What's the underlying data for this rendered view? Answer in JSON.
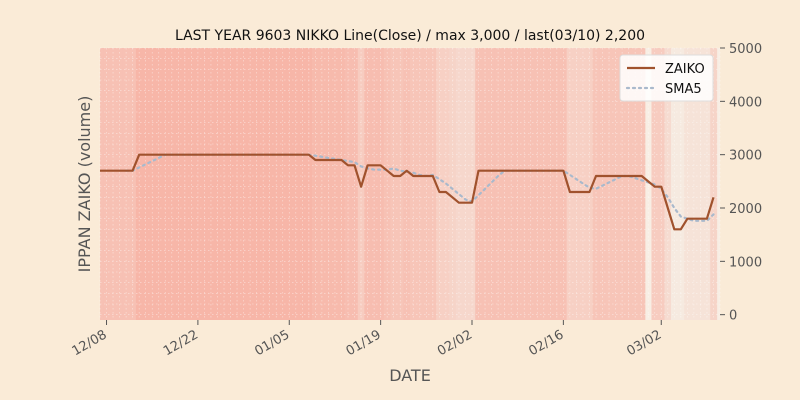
{
  "chart_data": {
    "type": "line",
    "title": "LAST YEAR 9603 NIKKO Line(Close) / max 3,000 / last(03/10) 2,200",
    "xlabel": "DATE",
    "ylabel": "IPPAN ZAIKO (volume)",
    "ylim": [
      -100,
      5000
    ],
    "yticks": [
      0,
      1000,
      2000,
      3000,
      4000,
      5000
    ],
    "ytick_labels": [
      "0",
      "1000",
      "2000",
      "3000",
      "4000",
      "5000"
    ],
    "xticks": [
      "12/08",
      "12/22",
      "01/05",
      "01/19",
      "02/02",
      "02/16",
      "03/02"
    ],
    "x_range": [
      "12/07",
      "03/11"
    ],
    "y_axis_side": "right",
    "grid": true,
    "legend_position": "top-right",
    "colors": {
      "background": "#faebd7",
      "zaiko": "#a0522d",
      "sma5": "#a9b9cc",
      "heat_light": "#f6e2d7",
      "heat_dark": "#f7b6a8"
    },
    "series": [
      {
        "name": "ZAIKO",
        "style": "solid",
        "x": [
          "12/07",
          "12/08",
          "12/09",
          "12/10",
          "12/11",
          "12/12",
          "12/13",
          "12/14",
          "12/15",
          "12/16",
          "12/17",
          "12/18",
          "12/19",
          "12/20",
          "12/21",
          "12/22",
          "12/23",
          "12/24",
          "12/25",
          "12/26",
          "12/27",
          "12/28",
          "12/29",
          "12/30",
          "12/31",
          "01/01",
          "01/02",
          "01/03",
          "01/04",
          "01/05",
          "01/06",
          "01/07",
          "01/08",
          "01/09",
          "01/10",
          "01/11",
          "01/12",
          "01/13",
          "01/14",
          "01/15",
          "01/16",
          "01/17",
          "01/18",
          "01/19",
          "01/20",
          "01/21",
          "01/22",
          "01/23",
          "01/24",
          "01/25",
          "01/26",
          "01/27",
          "01/28",
          "01/29",
          "01/30",
          "01/31",
          "02/01",
          "02/02",
          "02/03",
          "02/04",
          "02/05",
          "02/06",
          "02/07",
          "02/08",
          "02/09",
          "02/10",
          "02/11",
          "02/12",
          "02/13",
          "02/14",
          "02/15",
          "02/16",
          "02/17",
          "02/18",
          "02/19",
          "02/20",
          "02/21",
          "02/22",
          "02/23",
          "02/24",
          "02/25",
          "02/26",
          "02/27",
          "02/28",
          "03/01",
          "03/02",
          "03/03",
          "03/04",
          "03/05",
          "03/06",
          "03/07",
          "03/08",
          "03/09",
          "03/10"
        ],
        "values": [
          2700,
          2700,
          2700,
          2700,
          2700,
          2700,
          3000,
          3000,
          3000,
          3000,
          3000,
          3000,
          3000,
          3000,
          3000,
          3000,
          3000,
          3000,
          3000,
          3000,
          3000,
          3000,
          3000,
          3000,
          3000,
          3000,
          3000,
          3000,
          3000,
          3000,
          3000,
          3000,
          3000,
          2900,
          2900,
          2900,
          2900,
          2900,
          2800,
          2800,
          2400,
          2800,
          2800,
          2800,
          2700,
          2600,
          2600,
          2700,
          2600,
          2600,
          2600,
          2600,
          2300,
          2300,
          2200,
          2100,
          2100,
          2100,
          2700,
          2700,
          2700,
          2700,
          2700,
          2700,
          2700,
          2700,
          2700,
          2700,
          2700,
          2700,
          2700,
          2700,
          2300,
          2300,
          2300,
          2300,
          2600,
          2600,
          2600,
          2600,
          2600,
          2600,
          2600,
          2600,
          2400,
          2400,
          2000,
          1600,
          1600,
          1800,
          1800,
          1800,
          1800,
          2200
        ]
      },
      {
        "name": "SMA5",
        "style": "dotted",
        "x": [
          "12/11",
          "12/12",
          "12/13",
          "12/14",
          "12/15",
          "12/16",
          "12/17",
          "12/18",
          "12/19",
          "12/20",
          "12/21",
          "12/22",
          "12/23",
          "12/24",
          "12/25",
          "12/26",
          "12/27",
          "12/28",
          "12/29",
          "12/30",
          "12/31",
          "01/01",
          "01/02",
          "01/03",
          "01/04",
          "01/05",
          "01/06",
          "01/07",
          "01/08",
          "01/09",
          "01/10",
          "01/11",
          "01/12",
          "01/13",
          "01/14",
          "01/15",
          "01/16",
          "01/17",
          "01/18",
          "01/19",
          "01/20",
          "01/21",
          "01/22",
          "01/23",
          "01/24",
          "01/25",
          "01/26",
          "01/27",
          "01/28",
          "01/29",
          "01/30",
          "01/31",
          "02/01",
          "02/02",
          "02/03",
          "02/04",
          "02/05",
          "02/06",
          "02/07",
          "02/08",
          "02/09",
          "02/10",
          "02/11",
          "02/12",
          "02/13",
          "02/14",
          "02/15",
          "02/16",
          "02/17",
          "02/18",
          "02/19",
          "02/20",
          "02/21",
          "02/22",
          "02/23",
          "02/24",
          "02/25",
          "02/26",
          "02/27",
          "02/28",
          "03/01",
          "03/02",
          "03/03",
          "03/04",
          "03/05",
          "03/06",
          "03/07",
          "03/08",
          "03/09",
          "03/10"
        ],
        "values": [
          2700,
          2700,
          2760,
          2820,
          2880,
          2940,
          3000,
          3000,
          3000,
          3000,
          3000,
          3000,
          3000,
          3000,
          3000,
          3000,
          3000,
          3000,
          3000,
          3000,
          3000,
          3000,
          3000,
          3000,
          3000,
          3000,
          3000,
          3000,
          3000,
          2980,
          2960,
          2940,
          2920,
          2900,
          2880,
          2860,
          2780,
          2740,
          2720,
          2720,
          2720,
          2740,
          2700,
          2680,
          2660,
          2620,
          2600,
          2620,
          2540,
          2460,
          2360,
          2260,
          2160,
          2120,
          2240,
          2360,
          2480,
          2600,
          2700,
          2700,
          2700,
          2700,
          2700,
          2700,
          2700,
          2700,
          2700,
          2700,
          2620,
          2540,
          2460,
          2380,
          2360,
          2420,
          2480,
          2540,
          2600,
          2600,
          2560,
          2520,
          2440,
          2360,
          2200,
          2000,
          1840,
          1800,
          1760,
          1760,
          1760,
          1880
        ]
      }
    ]
  }
}
